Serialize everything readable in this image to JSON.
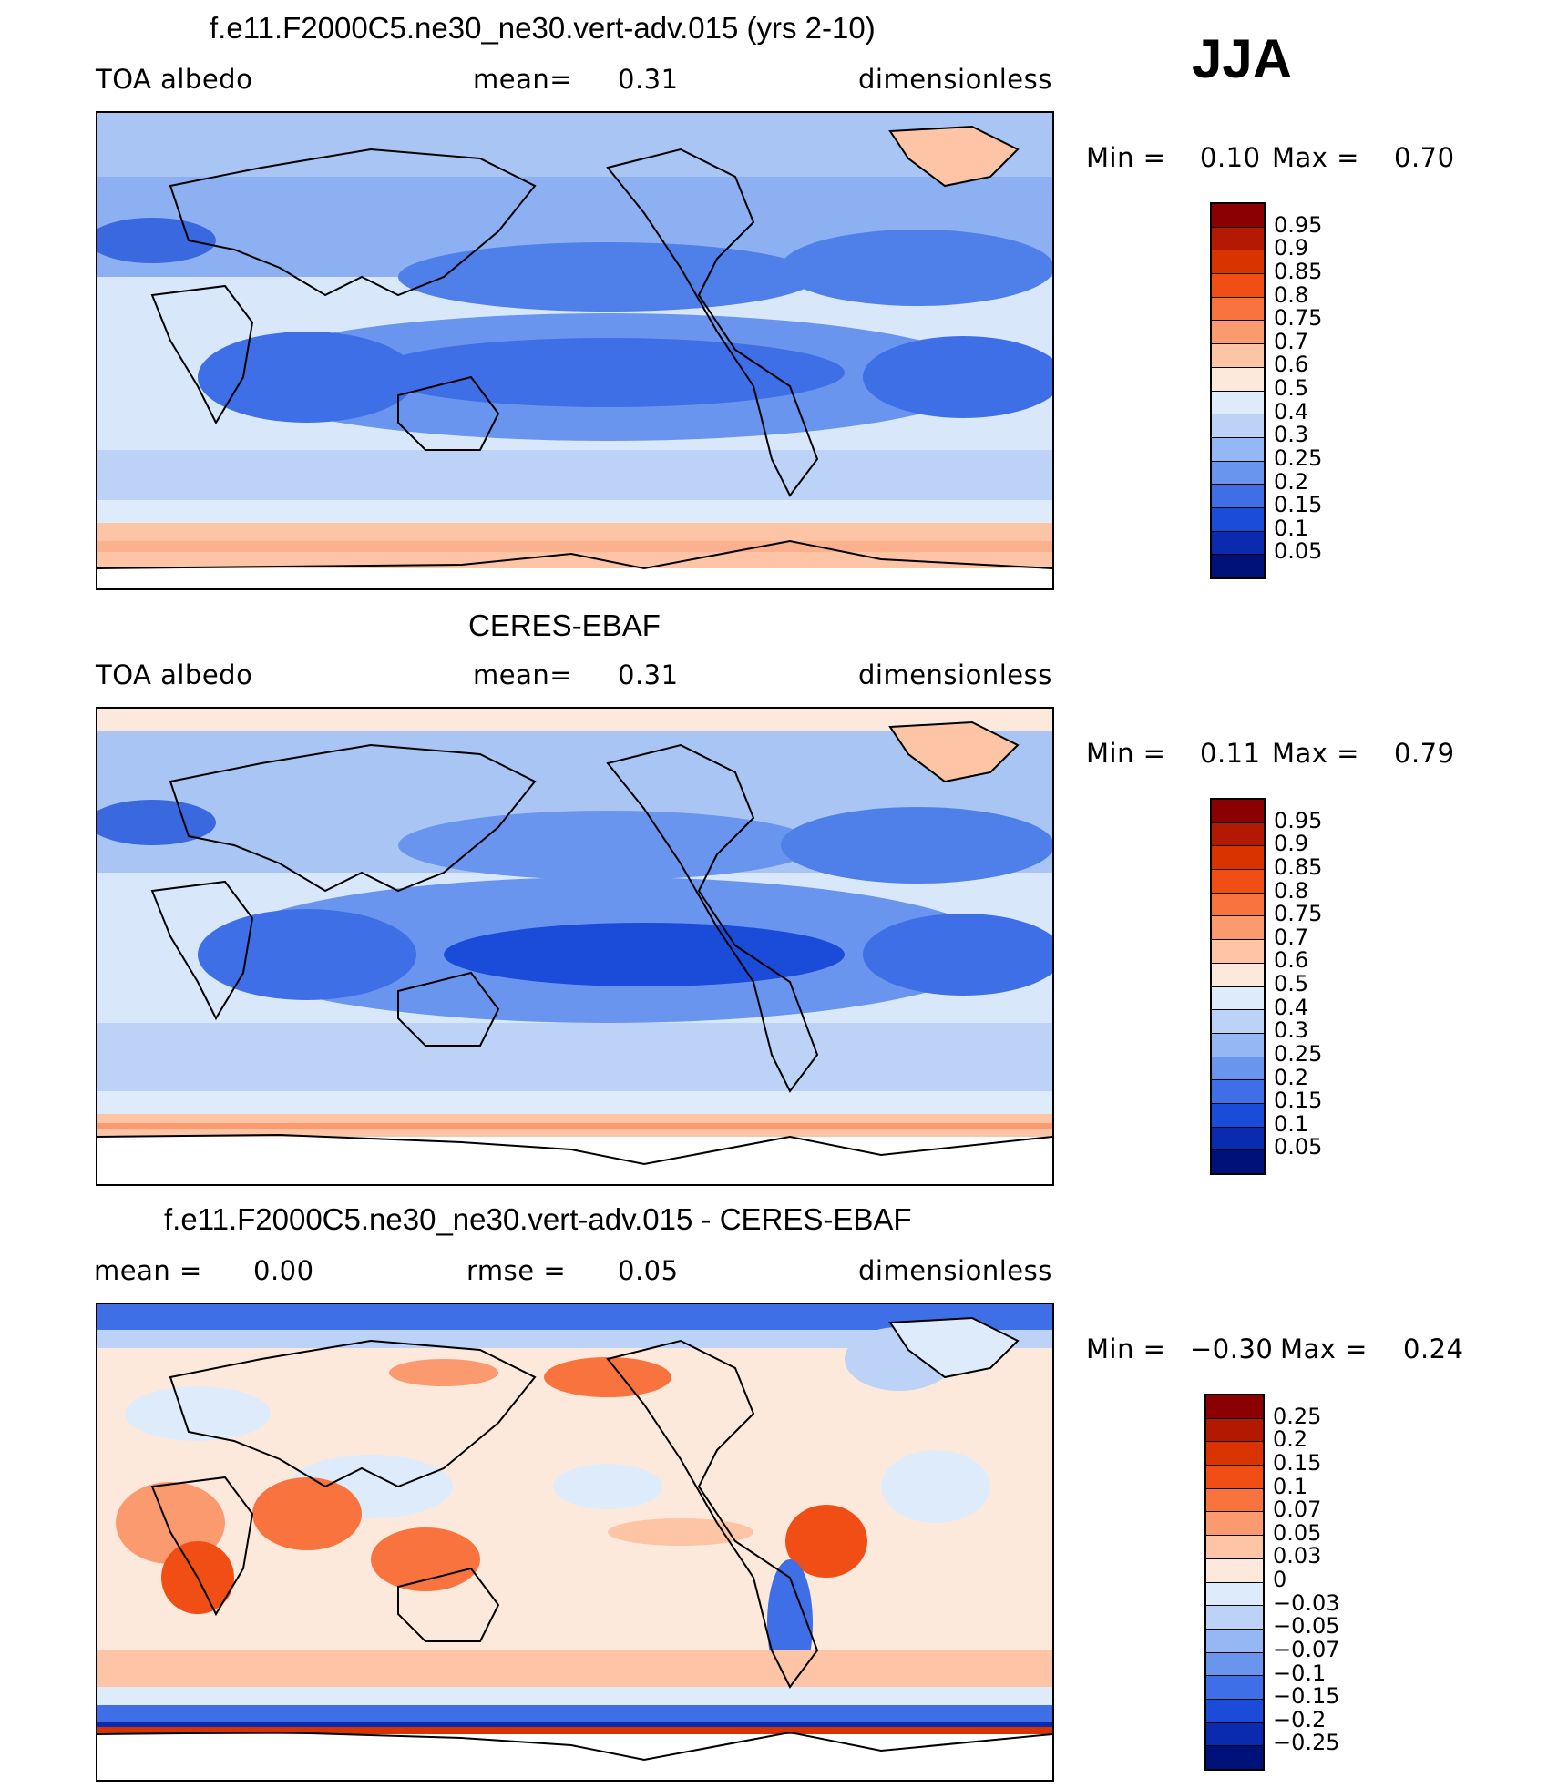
{
  "season": "JJA",
  "panels": [
    {
      "title": "f.e11.F2000C5.ne30_ne30.vert-adv.015 (yrs 2-10)",
      "left_label": "TOA  albedo",
      "center_key": "mean=",
      "center_value": "0.31",
      "right_label": "dimensionless",
      "min_key": "Min  =",
      "min_value": "0.10",
      "max_key": "Max  =",
      "max_value": "0.70",
      "colorbar_levels": [
        "0.95",
        "0.9",
        "0.85",
        "0.8",
        "0.75",
        "0.7",
        "0.6",
        "0.5",
        "0.4",
        "0.3",
        "0.25",
        "0.2",
        "0.15",
        "0.1",
        "0.05"
      ],
      "colorbar_colors": [
        "#8b0000",
        "#b31800",
        "#d93400",
        "#f04e14",
        "#f8733d",
        "#fb9a6e",
        "#fdc4a6",
        "#fde9dc",
        "#deebfb",
        "#bcd3f7",
        "#95b7f3",
        "#6a95ee",
        "#3e6fe6",
        "#1a4cd9",
        "#0a2bb0",
        "#00127a"
      ]
    },
    {
      "title": "CERES-EBAF",
      "left_label": "TOA  albedo",
      "center_key": "mean=",
      "center_value": "0.31",
      "right_label": "dimensionless",
      "min_key": "Min  =",
      "min_value": "0.11",
      "max_key": "Max  =",
      "max_value": "0.79",
      "colorbar_levels": [
        "0.95",
        "0.9",
        "0.85",
        "0.8",
        "0.75",
        "0.7",
        "0.6",
        "0.5",
        "0.4",
        "0.3",
        "0.25",
        "0.2",
        "0.15",
        "0.1",
        "0.05"
      ],
      "colorbar_colors": [
        "#8b0000",
        "#b31800",
        "#d93400",
        "#f04e14",
        "#f8733d",
        "#fb9a6e",
        "#fdc4a6",
        "#fde9dc",
        "#deebfb",
        "#bcd3f7",
        "#95b7f3",
        "#6a95ee",
        "#3e6fe6",
        "#1a4cd9",
        "#0a2bb0",
        "#00127a"
      ]
    },
    {
      "title": "f.e11.F2000C5.ne30_ne30.vert-adv.015 - CERES-EBAF",
      "left_label": "mean  =",
      "left_value": "0.00",
      "center_key": "rmse  =",
      "center_value": "0.05",
      "right_label": "dimensionless",
      "min_key": "Min  =",
      "min_value": "−0.30",
      "max_key": "Max  =",
      "max_value": "0.24",
      "colorbar_levels": [
        "0.25",
        "0.2",
        "0.15",
        "0.1",
        "0.07",
        "0.05",
        "0.03",
        "0",
        "−0.03",
        "−0.05",
        "−0.07",
        "−0.1",
        "−0.15",
        "−0.2",
        "−0.25"
      ],
      "colorbar_colors": [
        "#8b0000",
        "#b31800",
        "#d93400",
        "#f04e14",
        "#f8733d",
        "#fb9a6e",
        "#fdc4a6",
        "#fde9dc",
        "#deebfb",
        "#bcd3f7",
        "#95b7f3",
        "#6a95ee",
        "#3e6fe6",
        "#1a4cd9",
        "#0a2bb0",
        "#00127a"
      ]
    }
  ]
}
